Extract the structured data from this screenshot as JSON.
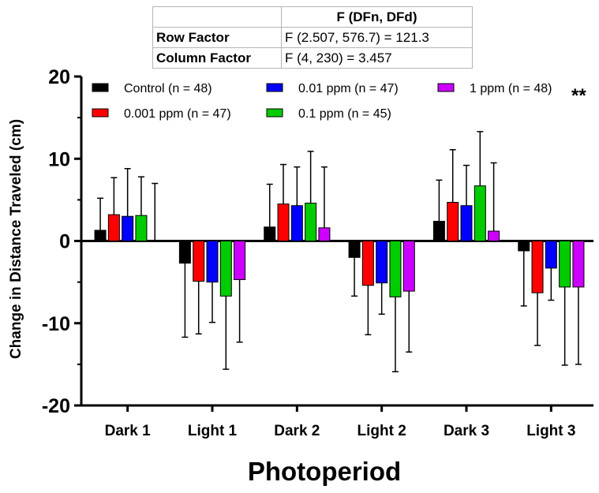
{
  "stats_table": {
    "header": [
      "",
      "F (DFn, DFd)"
    ],
    "rows": [
      {
        "factor": "Row Factor",
        "value": "F (2.507, 576.7) = 121.3"
      },
      {
        "factor": "Column Factor",
        "value": "F (4, 230) = 3.457"
      }
    ]
  },
  "chart_data": {
    "type": "bar",
    "xlabel": "Photoperiod",
    "ylabel": "Change in Distance Traveled (cm)",
    "ylim": [
      -20,
      20
    ],
    "yticks": [
      "20",
      "10",
      "0",
      "-10",
      "-20"
    ],
    "grid": false,
    "legend_position": "top",
    "categories": [
      "Dark 1",
      "Light 1",
      "Dark 2",
      "Light 2",
      "Dark 3",
      "Light 3"
    ],
    "series": [
      {
        "name": "Control (n = 48)",
        "color": "#000000",
        "values": [
          1.3,
          -2.7,
          1.7,
          -2.0,
          2.4,
          -1.2
        ],
        "error": [
          3.9,
          9.0,
          5.2,
          4.7,
          5.0,
          6.7
        ]
      },
      {
        "name": "0.001 ppm (n = 47)",
        "color": "#ff0000",
        "values": [
          3.2,
          -4.9,
          4.5,
          -5.4,
          4.7,
          -6.3
        ],
        "error": [
          4.5,
          6.4,
          4.8,
          6.0,
          6.4,
          6.4
        ]
      },
      {
        "name": "0.01 ppm (n = 47)",
        "color": "#0000ff",
        "values": [
          3.0,
          -5.0,
          4.3,
          -5.1,
          4.3,
          -3.3
        ],
        "error": [
          5.8,
          4.9,
          4.7,
          3.8,
          4.9,
          3.9
        ]
      },
      {
        "name": "0.1 ppm (n = 45)",
        "color": "#00cc00",
        "values": [
          3.1,
          -6.7,
          4.6,
          -6.8,
          6.7,
          -5.6
        ],
        "error": [
          4.7,
          8.9,
          6.3,
          9.1,
          6.6,
          9.5
        ]
      },
      {
        "name": "1 ppm (n = 48)",
        "color": "#cc00ff",
        "values": [
          0.0,
          -4.7,
          1.6,
          -6.1,
          1.2,
          -5.6
        ],
        "error": [
          7.0,
          7.6,
          7.4,
          7.4,
          8.3,
          9.4
        ]
      }
    ],
    "annotation": "**"
  }
}
